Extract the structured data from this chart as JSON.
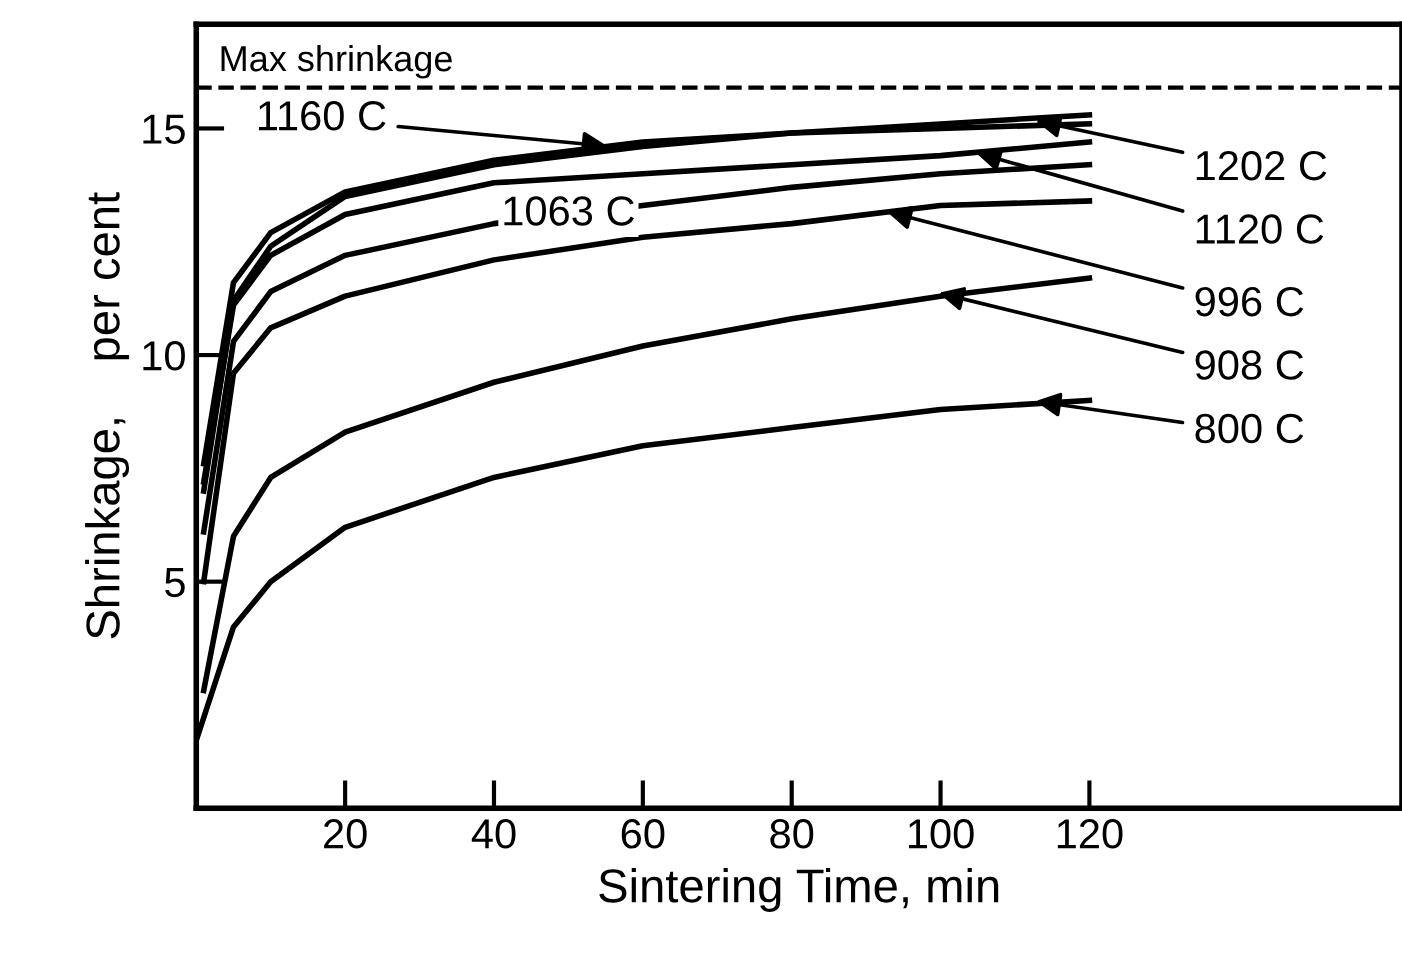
{
  "chart_data": {
    "type": "line",
    "xlabel": "Sintering Time, min",
    "ylabel": "Shrinkage,    per cent",
    "xlim": [
      0,
      162
    ],
    "ylim": [
      0,
      17.3
    ],
    "xticks": [
      20,
      40,
      60,
      80,
      100,
      120
    ],
    "yticks": [
      5,
      10,
      15
    ],
    "grid": false,
    "legend": false,
    "marker": "none",
    "line_style": "solid",
    "ref_lines": [
      {
        "axis": "y",
        "value": 15.9,
        "label": "Max shrinkage",
        "color": "#000000",
        "line_style": "dashed"
      }
    ],
    "series": [
      {
        "color": "#000000",
        "x": [
          0,
          5,
          10,
          20,
          40,
          60,
          80,
          100,
          120
        ],
        "values": [
          1.5,
          4.0,
          5.0,
          6.2,
          7.3,
          8.0,
          8.4,
          8.8,
          9.0
        ]
      },
      {
        "color": "#000000",
        "x": [
          1,
          5,
          10,
          20,
          40,
          60,
          80,
          100,
          120
        ],
        "values": [
          2.6,
          6.0,
          7.3,
          8.3,
          9.4,
          10.2,
          10.8,
          11.3,
          11.7
        ]
      },
      {
        "color": "#000000",
        "x": [
          1,
          5,
          10,
          20,
          40,
          60,
          80,
          100,
          120
        ],
        "values": [
          5.0,
          9.6,
          10.6,
          11.3,
          12.1,
          12.6,
          12.9,
          13.3,
          13.4
        ]
      },
      {
        "color": "#000000",
        "x": [
          1,
          5,
          10,
          20,
          40,
          60,
          80,
          100,
          120
        ],
        "values": [
          6.1,
          10.3,
          11.4,
          12.2,
          12.9,
          13.3,
          13.7,
          14.0,
          14.2
        ]
      },
      {
        "color": "#000000",
        "x": [
          1,
          5,
          10,
          20,
          40,
          60,
          80,
          100,
          120
        ],
        "values": [
          7.2,
          11.1,
          12.2,
          13.1,
          13.8,
          14.0,
          14.2,
          14.4,
          14.7
        ]
      },
      {
        "color": "#000000",
        "x": [
          1,
          5,
          10,
          20,
          40,
          60,
          80,
          100,
          120
        ],
        "values": [
          7.6,
          11.6,
          12.7,
          13.6,
          14.3,
          14.7,
          14.9,
          15.0,
          15.1
        ]
      },
      {
        "color": "#000000",
        "x": [
          1,
          5,
          10,
          20,
          40,
          60,
          80,
          100,
          120
        ],
        "values": [
          7.0,
          11.2,
          12.4,
          13.5,
          14.2,
          14.6,
          14.9,
          15.1,
          15.3
        ]
      }
    ],
    "annotations": [
      {
        "text": "1160 C",
        "x": 56,
        "y": 14.6
      },
      {
        "text": "1063 C",
        "x": 50,
        "y": 13.1
      },
      {
        "text": "1202 C",
        "x": 112,
        "y": 15.2
      },
      {
        "text": "1120 C",
        "x": 104,
        "y": 14.5
      },
      {
        "text": "996 C",
        "x": 92,
        "y": 13.2
      },
      {
        "text": "908 C",
        "x": 99,
        "y": 11.4
      },
      {
        "text": "800 C",
        "x": 112,
        "y": 9.0
      }
    ]
  }
}
